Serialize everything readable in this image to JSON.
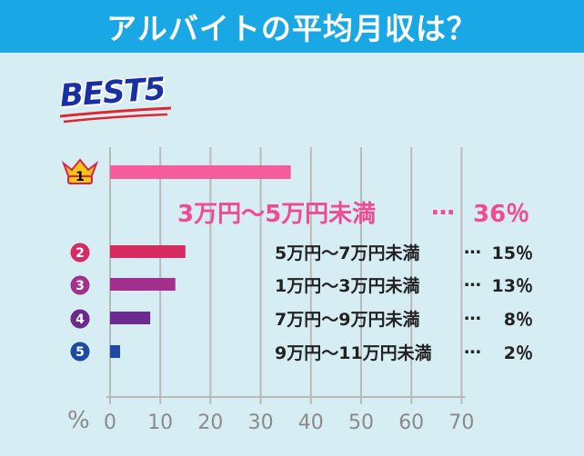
{
  "title": "アルバイトの平均月収は？",
  "badge": "BEST5",
  "colors": {
    "title_bg": "#19a7e5",
    "background": "#d7edf4",
    "rank1": "#f45c9c",
    "rank2": "#d62a61",
    "rank3": "#a2308c",
    "rank4": "#6a2a8e",
    "rank5": "#1e4aa2",
    "big_label": "#ef4b95"
  },
  "chart_data": {
    "type": "bar",
    "orientation": "horizontal",
    "categories": [
      "3万円〜5万円未満",
      "5万円〜7万円未満",
      "1万円〜3万円未満",
      "7万円〜9万円未満",
      "9万円〜11万円未満"
    ],
    "ranks": [
      "1",
      "2",
      "3",
      "4",
      "5"
    ],
    "values": [
      36,
      15,
      13,
      8,
      2
    ],
    "value_labels": [
      "36％",
      "15％",
      "13％",
      "8％",
      "2％"
    ],
    "separator": "…",
    "xunit": "%",
    "xlim": [
      0,
      70
    ],
    "xticks": [
      0,
      10,
      20,
      30,
      40,
      50,
      60,
      70
    ],
    "grid": "vertical"
  }
}
